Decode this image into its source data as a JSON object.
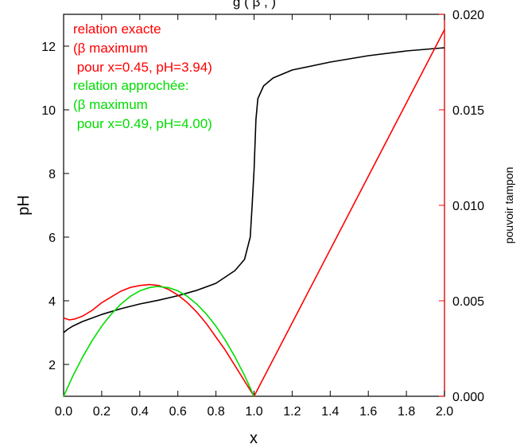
{
  "chart_data": {
    "type": "line",
    "title_partial": "g                    (  β ,             )",
    "xlabel": "x",
    "ylabel_left": "pH",
    "ylabel_right": "pouvoir tampon",
    "xlim": [
      0,
      2
    ],
    "ylim_left": [
      1,
      13
    ],
    "ylim_right": [
      0,
      0.02
    ],
    "x_ticks": [
      "0.0",
      "0.2",
      "0.4",
      "0.6",
      "0.8",
      "1.0",
      "1.2",
      "1.4",
      "1.6",
      "1.8",
      "2.0"
    ],
    "y_left_ticks": [
      "2",
      "4",
      "6",
      "8",
      "10",
      "12"
    ],
    "y_right_ticks": [
      "0.000",
      "0.005",
      "0.010",
      "0.015",
      "0.020"
    ],
    "grid": false,
    "colors": {
      "ph_curve": "#000000",
      "exact_relation": "#ff0000",
      "approx_relation": "#00dd00",
      "right_axis": "#ff0000"
    },
    "annotations": [
      {
        "text": "relation exacte",
        "color": "#ff0000"
      },
      {
        "text": "(β maximum",
        "color": "#ff0000"
      },
      {
        "text": " pour x=0.45, pH=3.94)",
        "color": "#ff0000"
      },
      {
        "text": "relation approchée:",
        "color": "#00dd00"
      },
      {
        "text": "(β maximum",
        "color": "#00dd00"
      },
      {
        "text": " pour x=0.49, pH=4.00)",
        "color": "#00dd00"
      }
    ],
    "series": [
      {
        "axis": "left",
        "color": "#000000",
        "points": [
          [
            0.0,
            3.0
          ],
          [
            0.02,
            3.1
          ],
          [
            0.05,
            3.21
          ],
          [
            0.1,
            3.35
          ],
          [
            0.15,
            3.46
          ],
          [
            0.2,
            3.57
          ],
          [
            0.3,
            3.75
          ],
          [
            0.4,
            3.9
          ],
          [
            0.5,
            4.02
          ],
          [
            0.6,
            4.16
          ],
          [
            0.7,
            4.33
          ],
          [
            0.8,
            4.55
          ],
          [
            0.9,
            4.95
          ],
          [
            0.95,
            5.3
          ],
          [
            0.98,
            6.0
          ],
          [
            0.99,
            7.0
          ],
          [
            1.0,
            8.1
          ],
          [
            1.01,
            9.7
          ],
          [
            1.02,
            10.35
          ],
          [
            1.05,
            10.75
          ],
          [
            1.1,
            11.0
          ],
          [
            1.2,
            11.25
          ],
          [
            1.4,
            11.5
          ],
          [
            1.6,
            11.7
          ],
          [
            1.8,
            11.85
          ],
          [
            2.0,
            11.95
          ]
        ]
      },
      {
        "axis": "right",
        "color": "#ff0000",
        "points": [
          [
            0.0,
            0.0041
          ],
          [
            0.03,
            0.004
          ],
          [
            0.06,
            0.00405
          ],
          [
            0.1,
            0.0042
          ],
          [
            0.15,
            0.0045
          ],
          [
            0.2,
            0.0049
          ],
          [
            0.25,
            0.0052
          ],
          [
            0.3,
            0.0055
          ],
          [
            0.35,
            0.0057
          ],
          [
            0.4,
            0.0058
          ],
          [
            0.45,
            0.00585
          ],
          [
            0.5,
            0.0058
          ],
          [
            0.55,
            0.0056
          ],
          [
            0.6,
            0.0053
          ],
          [
            0.65,
            0.0049
          ],
          [
            0.7,
            0.0044
          ],
          [
            0.75,
            0.0038
          ],
          [
            0.8,
            0.0031
          ],
          [
            0.85,
            0.0024
          ],
          [
            0.9,
            0.0016
          ],
          [
            0.95,
            0.0008
          ],
          [
            1.0,
            0.0
          ],
          [
            2.0,
            0.0192
          ]
        ]
      },
      {
        "axis": "right",
        "color": "#00dd00",
        "points": [
          [
            0.0,
            0.0
          ],
          [
            0.05,
            0.00109
          ],
          [
            0.1,
            0.00206
          ],
          [
            0.15,
            0.00292
          ],
          [
            0.2,
            0.00367
          ],
          [
            0.25,
            0.0043
          ],
          [
            0.3,
            0.00482
          ],
          [
            0.35,
            0.00523
          ],
          [
            0.4,
            0.00552
          ],
          [
            0.45,
            0.00569
          ],
          [
            0.49,
            0.00575
          ],
          [
            0.55,
            0.00569
          ],
          [
            0.6,
            0.00552
          ],
          [
            0.65,
            0.00523
          ],
          [
            0.7,
            0.00482
          ],
          [
            0.75,
            0.0043
          ],
          [
            0.8,
            0.00367
          ],
          [
            0.85,
            0.00292
          ],
          [
            0.9,
            0.00206
          ],
          [
            0.95,
            0.00109
          ],
          [
            1.0,
            0.0
          ]
        ]
      }
    ]
  }
}
